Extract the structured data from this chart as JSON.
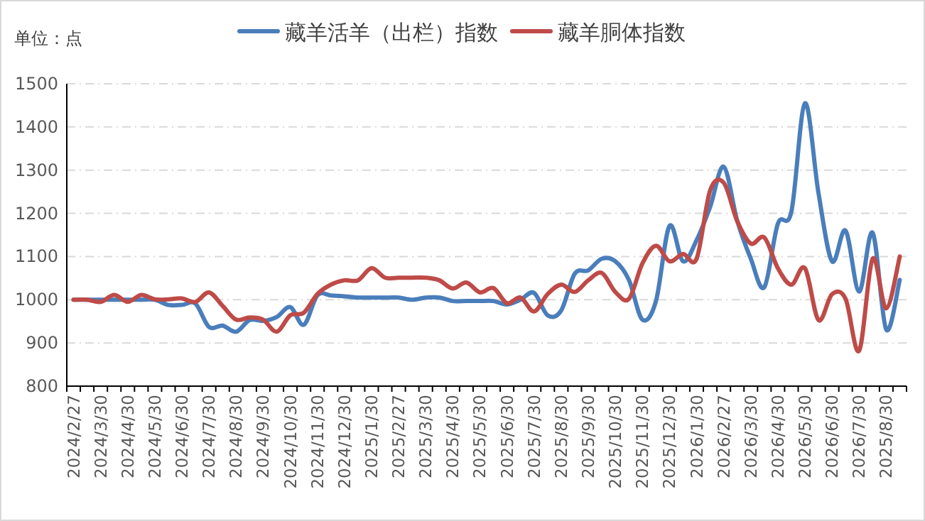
{
  "chart_data": {
    "type": "line",
    "ylabel": "单位：点",
    "categories": [
      "2024/2/27",
      null,
      "2024/3/30",
      null,
      "2024/4/30",
      null,
      "2024/5/30",
      null,
      "2024/6/30",
      null,
      "2024/7/30",
      null,
      "2024/8/30",
      null,
      "2024/9/30",
      null,
      "2024/10/30",
      null,
      "2024/11/30",
      null,
      "2024/12/30",
      null,
      "2025/1/30",
      null,
      "2025/2/27",
      null,
      "2025/3/30",
      null,
      "2025/4/30",
      null,
      "2025/5/30",
      null,
      "2025/6/30",
      null,
      "2025/7/30",
      null,
      "2025/8/30",
      null,
      "2025/9/30",
      null,
      "2025/10/30",
      null,
      "2025/11/30",
      null,
      "2025/12/30",
      null,
      "2026/1/30",
      null,
      "2026/2/27",
      null,
      "2026/3/30",
      null,
      "2026/4/30",
      null,
      "2026/5/30",
      null,
      "2026/6/30",
      null,
      "2026/7/30",
      null,
      "2025/8/30",
      null
    ],
    "series": [
      {
        "name": "藏羊活羊（出栏）指数",
        "color": "#4a7ebb",
        "values": [
          1000,
          1000,
          1000,
          1000,
          1000,
          1000,
          1000,
          988,
          988,
          991,
          937,
          940,
          926,
          953,
          951,
          960,
          983,
          942,
          1010,
          1010,
          1008,
          1005,
          1005,
          1005,
          1005,
          1000,
          1005,
          1005,
          997,
          997,
          997,
          997,
          989,
          1000,
          1016,
          964,
          975,
          1060,
          1068,
          1095,
          1089,
          1046,
          954,
          997,
          1171,
          1089,
          1138,
          1215,
          1308,
          1183,
          1095,
          1029,
          1176,
          1204,
          1455,
          1247,
          1089,
          1160,
          1019,
          1155,
          931,
          1046
        ]
      },
      {
        "name": "藏羊胴体指数",
        "color": "#be4b48",
        "values": [
          1000,
          1000,
          995,
          1011,
          995,
          1011,
          1001,
          1001,
          1003,
          995,
          1017,
          986,
          954,
          959,
          954,
          926,
          964,
          970,
          1013,
          1035,
          1045,
          1045,
          1073,
          1051,
          1051,
          1051,
          1051,
          1045,
          1026,
          1040,
          1017,
          1027,
          992,
          1005,
          973,
          1013,
          1035,
          1018,
          1045,
          1062,
          1018,
          1002,
          1084,
          1125,
          1089,
          1106,
          1095,
          1253,
          1271,
          1182,
          1130,
          1144,
          1073,
          1035,
          1073,
          953,
          1013,
          1002,
          882,
          1095,
          980,
          1100
        ]
      }
    ],
    "ylim": [
      800,
      1500
    ],
    "yticks": [
      800,
      900,
      1000,
      1100,
      1200,
      1300,
      1400,
      1500
    ],
    "grid": "y",
    "legend": "top",
    "marker": "none",
    "line_style": "solid"
  }
}
